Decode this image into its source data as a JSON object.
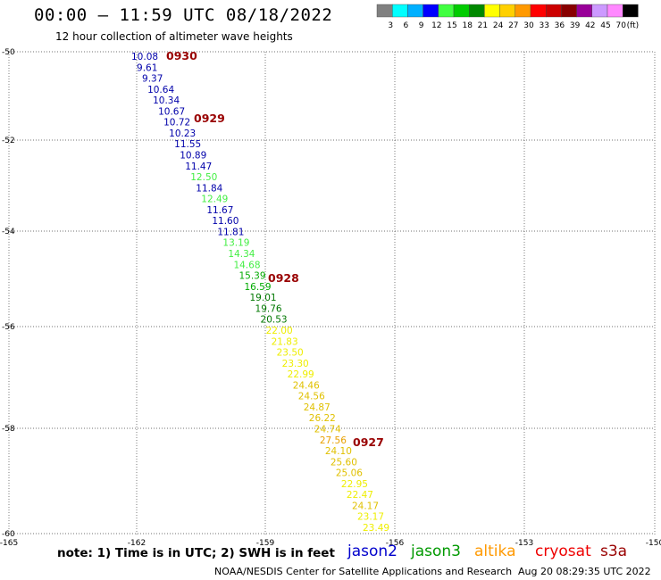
{
  "header": {
    "title": "00:00 – 11:59 UTC 08/18/2022",
    "subtitle": "12 hour collection of altimeter wave heights"
  },
  "colorbar": {
    "colors": [
      "#808080",
      "#00ffff",
      "#00b0ff",
      "#0000ff",
      "#40ff40",
      "#00cc00",
      "#008800",
      "#ffff00",
      "#ffd000",
      "#ff9900",
      "#ff0000",
      "#cc0000",
      "#880000",
      "#990099",
      "#cc99ff",
      "#ff88ff",
      "#000000"
    ],
    "labels": [
      "3",
      "6",
      "9",
      "12",
      "15",
      "18",
      "21",
      "24",
      "27",
      "30",
      "33",
      "36",
      "39",
      "42",
      "45",
      "70",
      "(ft)"
    ]
  },
  "axes": {
    "lat_labels": [
      "-50",
      "-52",
      "-54",
      "-56",
      "-58",
      "-60"
    ],
    "lon_labels": [
      "-165",
      "-162",
      "-159",
      "-156",
      "-153",
      "-150"
    ]
  },
  "track": {
    "points": [
      {
        "v": "10.08",
        "c": "#0000aa"
      },
      {
        "v": "9.61",
        "c": "#0000aa"
      },
      {
        "v": "9.37",
        "c": "#0000aa"
      },
      {
        "v": "10.64",
        "c": "#0000aa"
      },
      {
        "v": "10.34",
        "c": "#0000aa"
      },
      {
        "v": "10.67",
        "c": "#0000aa"
      },
      {
        "v": "10.72",
        "c": "#0000aa"
      },
      {
        "v": "10.23",
        "c": "#0000aa"
      },
      {
        "v": "11.55",
        "c": "#0000aa"
      },
      {
        "v": "10.89",
        "c": "#0000aa"
      },
      {
        "v": "11.47",
        "c": "#0000aa"
      },
      {
        "v": "12.50",
        "c": "#44ee44"
      },
      {
        "v": "11.84",
        "c": "#0000aa"
      },
      {
        "v": "12.49",
        "c": "#44ee44"
      },
      {
        "v": "11.67",
        "c": "#0000aa"
      },
      {
        "v": "11.60",
        "c": "#0000aa"
      },
      {
        "v": "11.81",
        "c": "#0000aa"
      },
      {
        "v": "13.19",
        "c": "#44ee44"
      },
      {
        "v": "14.34",
        "c": "#44ee44"
      },
      {
        "v": "14.68",
        "c": "#44ee44"
      },
      {
        "v": "15.39",
        "c": "#00aa00"
      },
      {
        "v": "16.59",
        "c": "#00aa00"
      },
      {
        "v": "19.01",
        "c": "#007700"
      },
      {
        "v": "19.76",
        "c": "#007700"
      },
      {
        "v": "20.53",
        "c": "#007700"
      },
      {
        "v": "22.00",
        "c": "#eeee00"
      },
      {
        "v": "21.83",
        "c": "#eeee00"
      },
      {
        "v": "23.50",
        "c": "#eeee00"
      },
      {
        "v": "23.30",
        "c": "#eeee00"
      },
      {
        "v": "22.99",
        "c": "#eeee00"
      },
      {
        "v": "24.46",
        "c": "#e0c000"
      },
      {
        "v": "24.56",
        "c": "#e0c000"
      },
      {
        "v": "24.87",
        "c": "#e0c000"
      },
      {
        "v": "26.22",
        "c": "#e0c000"
      },
      {
        "v": "24.74",
        "c": "#e0c000"
      },
      {
        "v": "27.56",
        "c": "#e8a000"
      },
      {
        "v": "24.10",
        "c": "#e0c000"
      },
      {
        "v": "25.60",
        "c": "#e0c000"
      },
      {
        "v": "25.06",
        "c": "#e0c000"
      },
      {
        "v": "22.95",
        "c": "#eeee00"
      },
      {
        "v": "22.47",
        "c": "#eeee00"
      },
      {
        "v": "24.17",
        "c": "#e0c000"
      },
      {
        "v": "23.17",
        "c": "#eeee00"
      },
      {
        "v": "23.49",
        "c": "#eeee00"
      }
    ],
    "time_markers": [
      "0930",
      "0929",
      "0928",
      "0927"
    ],
    "time_color": "#990000"
  },
  "footer": {
    "note": "note:  1) Time is in UTC;  2) SWH is in feet",
    "satellites": [
      {
        "name": "jason2",
        "color": "#0000cc"
      },
      {
        "name": "jason3",
        "color": "#009900"
      },
      {
        "name": "altika",
        "color": "#ff9900"
      },
      {
        "name": "cryosat",
        "color": "#ee0000"
      },
      {
        "name": "s3a",
        "color": "#990000"
      }
    ],
    "credit": "NOAA/NESDIS Center for Satellite Applications and Research",
    "timestamp": "Aug 20 08:29:35 UTC 2022"
  }
}
